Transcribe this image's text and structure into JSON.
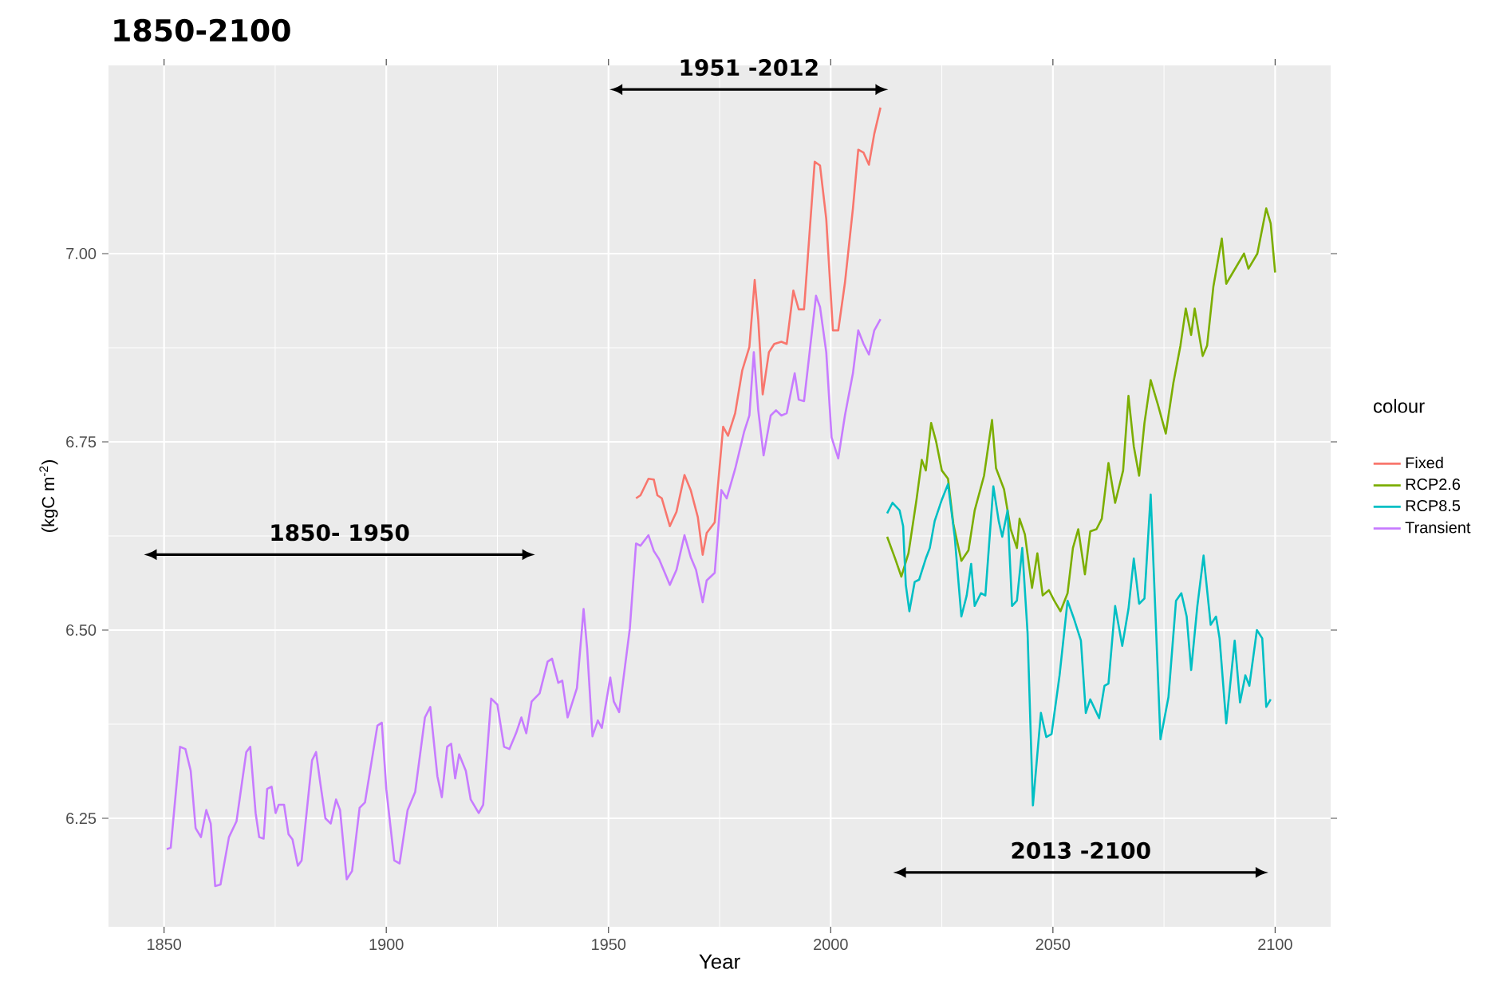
{
  "chart_data": {
    "type": "line",
    "title": "1850-2100",
    "xlabel": "Year",
    "ylabel": "(kgC m$^{-2}$)",
    "legend_title": "colour",
    "xlim": [
      1837.5,
      2112.5
    ],
    "ylim": [
      6.106,
      7.25
    ],
    "xticks": [
      1850,
      1900,
      1950,
      2000,
      2050,
      2100
    ],
    "yticks": [
      {
        "value": 6.25,
        "label": "6.25"
      },
      {
        "value": 6.5,
        "label": "6.50"
      },
      {
        "value": 6.75,
        "label": "6.75"
      },
      {
        "value": 7.0,
        "label": "7.00"
      }
    ],
    "grid": true,
    "legend": "right",
    "annotations": [
      "1850- 1950",
      "1951 -2012",
      "2013 -2100"
    ],
    "series": [
      {
        "name": "Fixed",
        "color": "#f8766d",
        "x": [
          1956.2,
          1957.2,
          1959,
          1960.2,
          1961,
          1962,
          1963.8,
          1965.3,
          1967.1,
          1968.5,
          1970.1,
          1971.2,
          1972.1,
          1973.9,
          1975.8,
          1976.9,
          1978.5,
          1980.1,
          1981.7,
          1982.9,
          1983.7,
          1984.7,
          1986.1,
          1987.3,
          1988.9,
          1990.1,
          1991.6,
          1992.8,
          1994,
          1996.4,
          1997.6,
          1999,
          2000.5,
          2001.7,
          2003.2,
          2005,
          2006.2,
          2007.4,
          2008.6,
          2009.8,
          2011.2
        ],
        "values": [
          6.675,
          6.679,
          6.701,
          6.7,
          6.679,
          6.675,
          6.638,
          6.657,
          6.706,
          6.686,
          6.65,
          6.6,
          6.629,
          6.643,
          6.77,
          6.758,
          6.788,
          6.845,
          6.876,
          6.965,
          6.912,
          6.813,
          6.869,
          6.88,
          6.883,
          6.88,
          6.951,
          6.926,
          6.926,
          7.122,
          7.117,
          7.046,
          6.898,
          6.898,
          6.961,
          7.06,
          7.138,
          7.134,
          7.118,
          7.159,
          7.194
        ]
      },
      {
        "name": "RCP2.6",
        "color": "#7cae00",
        "x": [
          2012.7,
          2014.5,
          2015.9,
          2017.5,
          2019.3,
          2020.5,
          2021.4,
          2022.6,
          2023.7,
          2025,
          2026.4,
          2027.6,
          2029.4,
          2031,
          2032.4,
          2034.5,
          2036.3,
          2037.2,
          2039,
          2040.5,
          2041.9,
          2042.5,
          2043.7,
          2045.3,
          2046.5,
          2047.7,
          2049.1,
          2050.3,
          2051.7,
          2053.3,
          2054.5,
          2055.7,
          2057.2,
          2058.4,
          2059.8,
          2061,
          2062.5,
          2064,
          2065.8,
          2067,
          2068.2,
          2069.4,
          2070.6,
          2072,
          2073.6,
          2075.4,
          2077.1,
          2078.7,
          2079.9,
          2081.1,
          2081.9,
          2083.7,
          2084.7,
          2086.1,
          2088,
          2089,
          2091,
          2093,
          2094,
          2096,
          2098,
          2099,
          2100
        ],
        "values": [
          6.624,
          6.595,
          6.571,
          6.602,
          6.673,
          6.726,
          6.712,
          6.775,
          6.751,
          6.712,
          6.701,
          6.641,
          6.592,
          6.606,
          6.659,
          6.705,
          6.779,
          6.715,
          6.687,
          6.634,
          6.609,
          6.648,
          6.627,
          6.556,
          6.602,
          6.546,
          6.553,
          6.539,
          6.525,
          6.549,
          6.609,
          6.634,
          6.574,
          6.631,
          6.634,
          6.648,
          6.722,
          6.669,
          6.712,
          6.811,
          6.744,
          6.705,
          6.775,
          6.832,
          6.8,
          6.761,
          6.828,
          6.878,
          6.927,
          6.892,
          6.927,
          6.864,
          6.878,
          6.956,
          7.02,
          6.96,
          6.98,
          7.0,
          6.98,
          7.0,
          7.06,
          7.04,
          6.975
        ]
      },
      {
        "name": "RCP8.5",
        "color": "#00bfc4",
        "x": [
          2012.7,
          2013.9,
          2015.5,
          2016.3,
          2016.9,
          2017.7,
          2018.9,
          2019.9,
          2021.4,
          2022.3,
          2023.4,
          2025,
          2026.4,
          2027.9,
          2029.4,
          2030.6,
          2031.6,
          2032.4,
          2033.8,
          2034.8,
          2036.6,
          2037.8,
          2038.6,
          2039.8,
          2040.8,
          2041.9,
          2043.1,
          2044.3,
          2045.5,
          2047.3,
          2048.5,
          2049.7,
          2051.5,
          2053.3,
          2054.8,
          2056.3,
          2057.4,
          2058.4,
          2060.4,
          2061.6,
          2062.5,
          2064,
          2065.6,
          2067,
          2068.2,
          2069.4,
          2070.6,
          2072,
          2074.2,
          2076,
          2077.7,
          2078.9,
          2080.1,
          2081.1,
          2082.5,
          2083.9,
          2085.5,
          2086.7,
          2087.5,
          2089,
          2090.9,
          2092.1,
          2093.3,
          2094.2,
          2095.9,
          2097.1,
          2098,
          2099
        ],
        "values": [
          6.655,
          6.669,
          6.659,
          6.638,
          6.56,
          6.525,
          6.564,
          6.567,
          6.595,
          6.609,
          6.645,
          6.673,
          6.694,
          6.624,
          6.518,
          6.546,
          6.588,
          6.532,
          6.549,
          6.546,
          6.691,
          6.645,
          6.624,
          6.659,
          6.532,
          6.539,
          6.609,
          6.496,
          6.267,
          6.39,
          6.358,
          6.362,
          6.44,
          6.539,
          6.514,
          6.486,
          6.39,
          6.408,
          6.383,
          6.426,
          6.429,
          6.532,
          6.479,
          6.528,
          6.595,
          6.535,
          6.542,
          6.68,
          6.355,
          6.411,
          6.539,
          6.549,
          6.518,
          6.447,
          6.532,
          6.599,
          6.507,
          6.518,
          6.489,
          6.376,
          6.486,
          6.404,
          6.44,
          6.426,
          6.5,
          6.489,
          6.398,
          6.408
        ]
      },
      {
        "name": "Transient",
        "color": "#c77cff",
        "x": [
          1850.6,
          1851.5,
          1853.6,
          1854.8,
          1856,
          1857.1,
          1858.3,
          1859.5,
          1860.5,
          1861.5,
          1862.7,
          1864.6,
          1866.3,
          1868.5,
          1869.4,
          1870.6,
          1871.4,
          1872.4,
          1873.2,
          1874.2,
          1875.1,
          1875.8,
          1877,
          1878,
          1878.9,
          1880.1,
          1880.95,
          1883.3,
          1884.2,
          1885.1,
          1886.3,
          1887.5,
          1888.7,
          1889.6,
          1891.1,
          1892.3,
          1894,
          1895.2,
          1898,
          1899,
          1900,
          1901.8,
          1903,
          1904.8,
          1906.5,
          1908.7,
          1909.9,
          1911.5,
          1912.5,
          1913.7,
          1914.6,
          1915.5,
          1916.4,
          1917.9,
          1919,
          1920.8,
          1921.8,
          1923.6,
          1925,
          1926.5,
          1927.7,
          1929.2,
          1930.4,
          1931.5,
          1932.7,
          1934.5,
          1936.3,
          1937.3,
          1938.7,
          1939.6,
          1940.8,
          1942.9,
          1944.4,
          1945.2,
          1946.4,
          1947.6,
          1948.5,
          1950.4,
          1951.2,
          1952.4,
          1954.8,
          1956.2,
          1957.2,
          1959,
          1960.2,
          1961.4,
          1963.8,
          1965.3,
          1967.1,
          1968.5,
          1969.7,
          1971.2,
          1972.1,
          1973.9,
          1975.4,
          1976.6,
          1978.5,
          1980.5,
          1981.7,
          1982.7,
          1983.7,
          1984.9,
          1986.5,
          1987.7,
          1988.9,
          1990.1,
          1991.9,
          1992.8,
          1994,
          1996.7,
          1997.6,
          1999,
          2000.2,
          2001.7,
          2003.2,
          2005,
          2006.2,
          2007.4,
          2008.6,
          2009.8,
          2011.2
        ],
        "values": [
          6.209,
          6.211,
          6.345,
          6.342,
          6.313,
          6.237,
          6.225,
          6.261,
          6.243,
          6.16,
          6.162,
          6.225,
          6.246,
          6.338,
          6.345,
          6.257,
          6.225,
          6.223,
          6.289,
          6.292,
          6.257,
          6.268,
          6.268,
          6.229,
          6.222,
          6.187,
          6.194,
          6.327,
          6.338,
          6.299,
          6.25,
          6.243,
          6.275,
          6.261,
          6.169,
          6.18,
          6.264,
          6.271,
          6.373,
          6.377,
          6.289,
          6.194,
          6.19,
          6.261,
          6.285,
          6.384,
          6.398,
          6.306,
          6.278,
          6.345,
          6.349,
          6.303,
          6.335,
          6.313,
          6.275,
          6.257,
          6.268,
          6.409,
          6.401,
          6.345,
          6.342,
          6.363,
          6.384,
          6.363,
          6.405,
          6.416,
          6.458,
          6.462,
          6.43,
          6.433,
          6.384,
          6.423,
          6.528,
          6.475,
          6.359,
          6.38,
          6.37,
          6.437,
          6.405,
          6.391,
          6.502,
          6.615,
          6.612,
          6.626,
          6.605,
          6.594,
          6.56,
          6.58,
          6.626,
          6.597,
          6.58,
          6.537,
          6.566,
          6.576,
          6.686,
          6.675,
          6.714,
          6.763,
          6.785,
          6.869,
          6.792,
          6.732,
          6.785,
          6.792,
          6.785,
          6.788,
          6.841,
          6.806,
          6.804,
          6.944,
          6.929,
          6.869,
          6.756,
          6.728,
          6.785,
          6.841,
          6.898,
          6.88,
          6.866,
          6.898,
          6.913
        ]
      }
    ]
  }
}
